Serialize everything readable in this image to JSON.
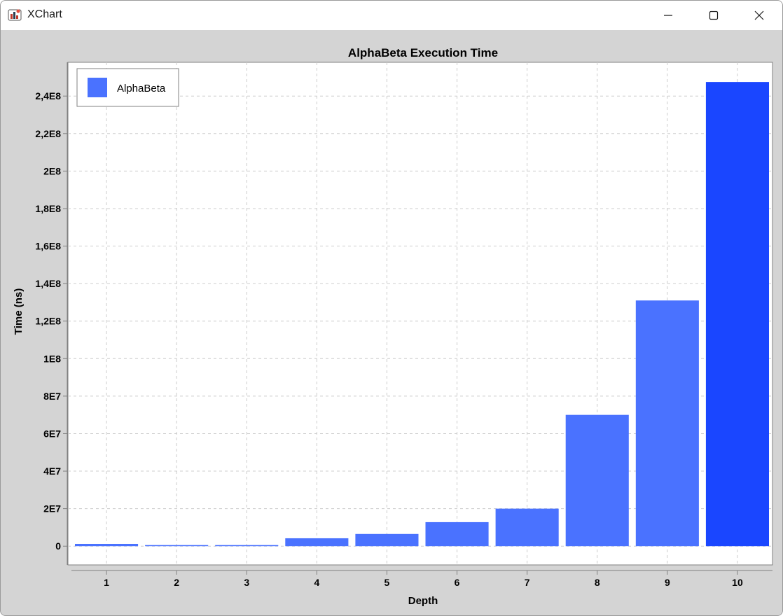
{
  "window": {
    "title": "XChart",
    "app_icon": "java-duke-icon",
    "controls": {
      "minimize_icon": "minimize-icon",
      "maximize_icon": "maximize-icon",
      "close_icon": "close-icon"
    }
  },
  "colors": {
    "background": "#d4d4d4",
    "plot_background": "#ffffff",
    "bar": "#4a72ff",
    "bar_highlight": "#1a46ff",
    "grid": "#cccccc",
    "text": "#000000"
  },
  "chart_data": {
    "type": "bar",
    "title": "AlphaBeta Execution Time",
    "xlabel": "Depth",
    "ylabel": "Time (ns)",
    "categories": [
      "1",
      "2",
      "3",
      "4",
      "5",
      "6",
      "7",
      "8",
      "9",
      "10"
    ],
    "series": [
      {
        "name": "AlphaBeta",
        "values": [
          1200000,
          300000,
          300000,
          4200000,
          6500000,
          12800000,
          20000000,
          70000000,
          131000000,
          247500000
        ]
      }
    ],
    "ylim": [
      -10000000,
      258000000
    ],
    "yticks": [
      0,
      20000000,
      40000000,
      60000000,
      80000000,
      100000000,
      120000000,
      140000000,
      160000000,
      180000000,
      200000000,
      220000000,
      240000000
    ],
    "ytick_labels": [
      "0",
      "2E7",
      "4E7",
      "6E7",
      "8E7",
      "1E8",
      "1,2E8",
      "1,4E8",
      "1,6E8",
      "1,8E8",
      "2E8",
      "2,2E8",
      "2,4E8"
    ],
    "grid": true,
    "legend": "top-left",
    "highlighted_index": 9
  }
}
